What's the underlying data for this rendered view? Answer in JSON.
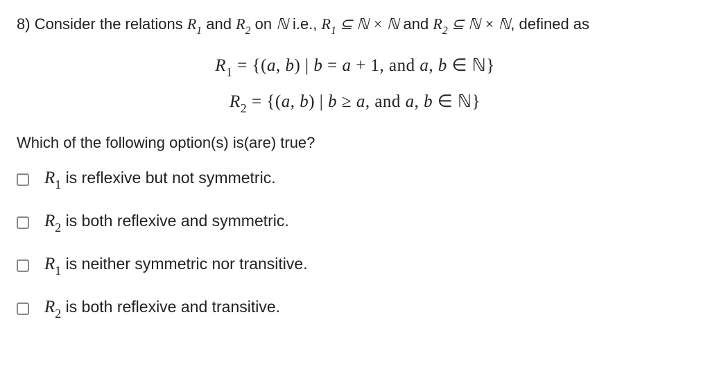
{
  "question": {
    "number": "8)",
    "intro_pre": "Consider the relations ",
    "R1": "R",
    "R1_sub": "1",
    "intro_and": " and ",
    "R2": "R",
    "R2_sub": "2",
    "intro_on": " on ",
    "N": "ℕ",
    "ie": " i.e., ",
    "subset": " ⊆ ",
    "times": " × ",
    "and_word": " and ",
    "defined_as": ", defined as"
  },
  "math": {
    "line1_lhs_R": "R",
    "line1_lhs_sub": "1",
    "eq": " = ",
    "set_open": "{(",
    "a": "a",
    "comma": ", ",
    "b": "b",
    "set_mid": ") | ",
    "line1_cond": " = ",
    "plus1": " + 1,",
    "and_text": "  and ",
    "in": " ∈ ",
    "N": "ℕ",
    "set_close": "}",
    "line2_lhs_R": "R",
    "line2_lhs_sub": "2",
    "line2_cond": " ≥ "
  },
  "prompt": "Which of the following option(s) is(are) true?",
  "options": [
    {
      "R": "R",
      "sub": "1",
      "text": " is reflexive but not symmetric."
    },
    {
      "R": "R",
      "sub": "2",
      "text": " is both reflexive and symmetric."
    },
    {
      "R": "R",
      "sub": "1",
      "text": " is neither symmetric nor transitive."
    },
    {
      "R": "R",
      "sub": "2",
      "text": " is both reflexive and transitive."
    }
  ],
  "style": {
    "text_color": "#222222",
    "checkbox_border": "#888888",
    "background": "#ffffff",
    "body_fontsize": 22,
    "math_fontsize": 25,
    "option_fontsize": 25
  }
}
